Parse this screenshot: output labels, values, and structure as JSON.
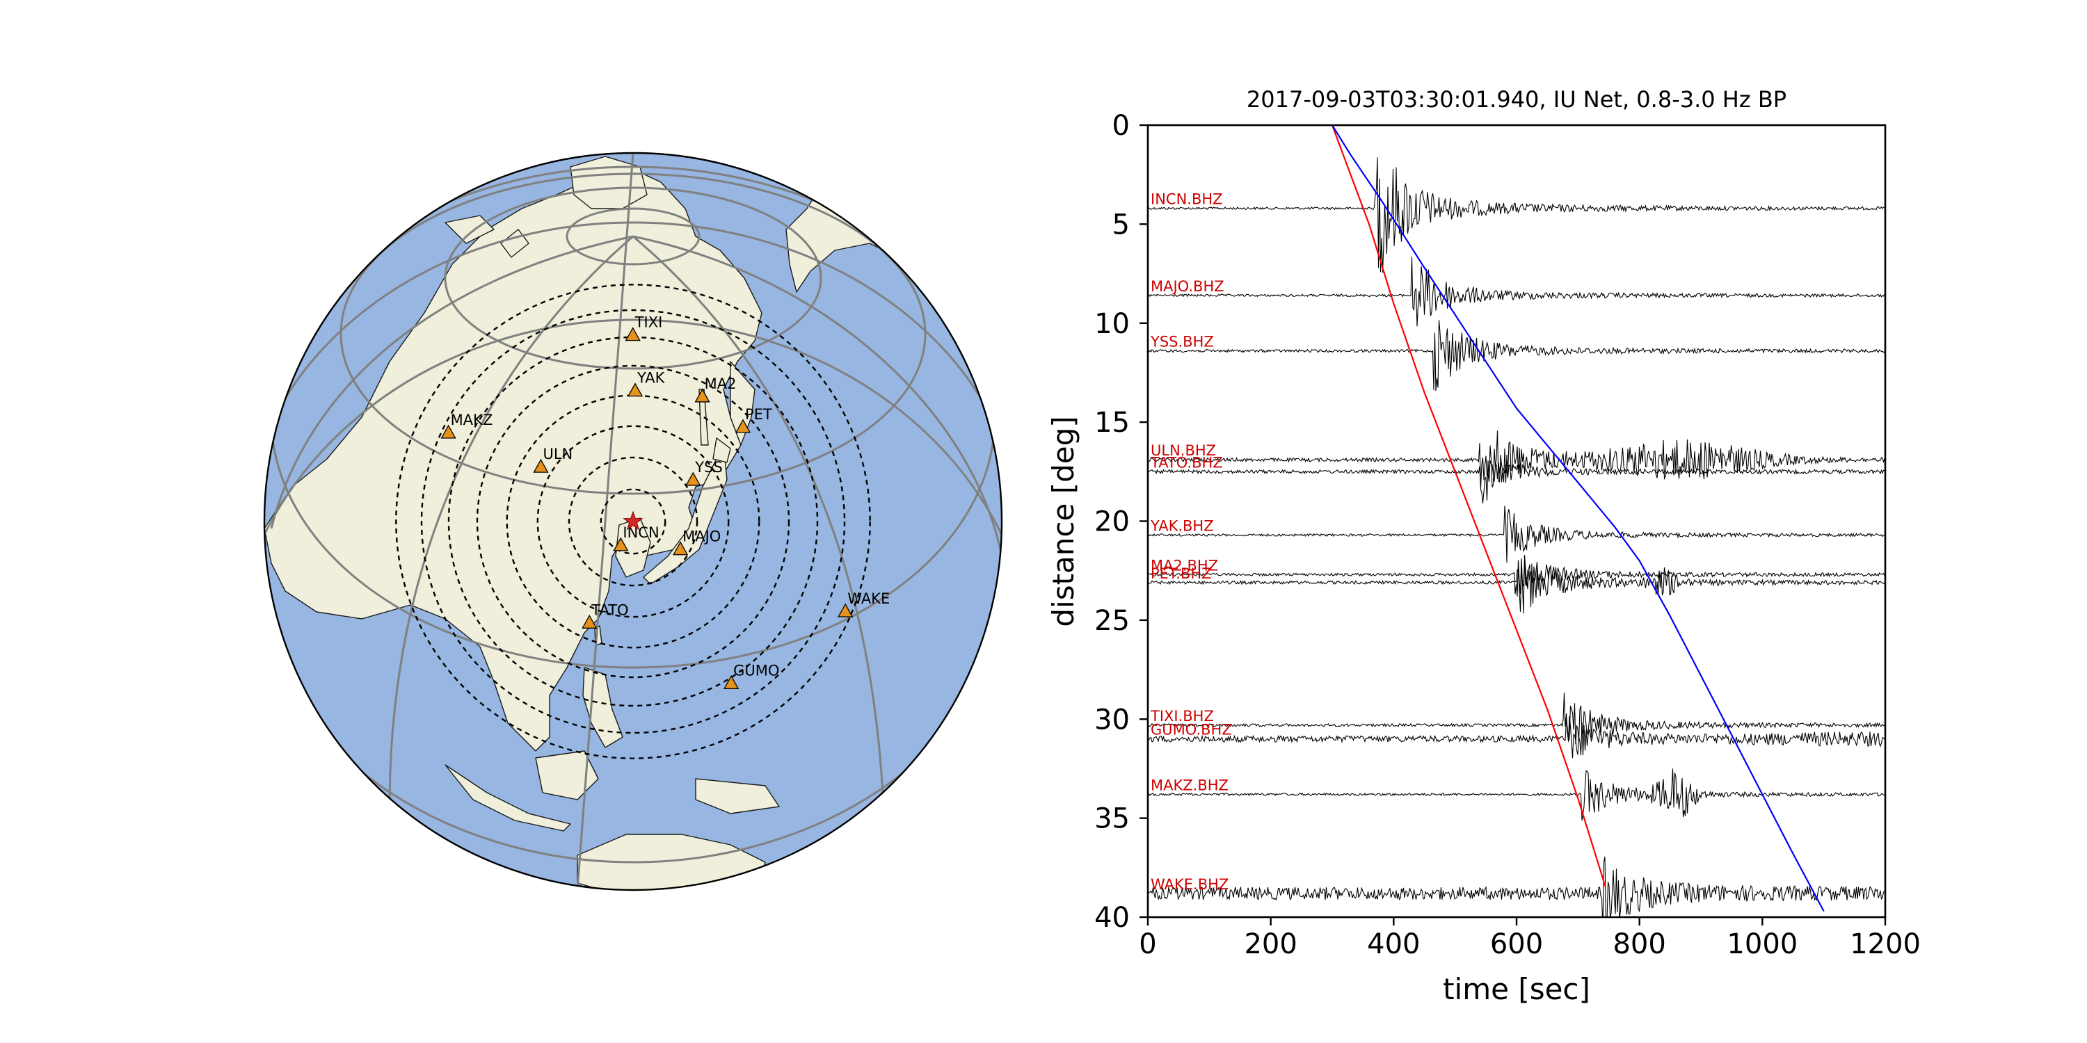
{
  "colors": {
    "ocean": "#97b6e1",
    "land": "#efefdb",
    "coast": "#1a1a1a",
    "graticule": "#808080",
    "station": "#e69119",
    "epicenter": "#d62728",
    "p_curve": "#ff0000",
    "s_curve": "#0000ff",
    "trace": "#000000",
    "trace_label": "#cc0000"
  },
  "icons": {
    "station": "triangle-icon",
    "epicenter": "star-icon"
  },
  "map": {
    "projection": "orthographic",
    "center": {
      "lat": 41.3,
      "lon": 129.0
    },
    "distance_rings_deg": [
      5,
      10,
      15,
      20,
      25,
      30,
      35,
      40
    ],
    "stations": [
      {
        "code": "TIXI",
        "lat": 71.6,
        "lon": 128.9
      },
      {
        "code": "YAK",
        "lat": 62.0,
        "lon": 129.7
      },
      {
        "code": "MA2",
        "lat": 59.6,
        "lon": 150.8
      },
      {
        "code": "PET",
        "lat": 53.0,
        "lon": 158.7
      },
      {
        "code": "MAKZ",
        "lat": 46.8,
        "lon": 81.98
      },
      {
        "code": "ULN",
        "lat": 47.9,
        "lon": 107.1
      },
      {
        "code": "YSS",
        "lat": 46.95,
        "lon": 142.8
      },
      {
        "code": "INCN",
        "lat": 37.5,
        "lon": 126.6
      },
      {
        "code": "MAJO",
        "lat": 36.5,
        "lon": 138.2
      },
      {
        "code": "TATO",
        "lat": 24.97,
        "lon": 121.5
      },
      {
        "code": "WAKE",
        "lat": 19.3,
        "lon": 166.6
      },
      {
        "code": "GUMO",
        "lat": 13.6,
        "lon": 144.9
      }
    ]
  },
  "chart_data": {
    "type": "line",
    "title": "2017-09-03T03:30:01.940, IU Net, 0.8-3.0 Hz BP",
    "xlabel": "time [sec]",
    "ylabel": "distance [deg]",
    "xlim": [
      0,
      1200
    ],
    "ylim": [
      40,
      0
    ],
    "xticks": [
      0,
      200,
      400,
      600,
      800,
      1000,
      1200
    ],
    "yticks": [
      0,
      5,
      10,
      15,
      20,
      25,
      30,
      35,
      40
    ],
    "traces": [
      {
        "name": "INCN.BHZ",
        "distance": 4.2,
        "p_arrival": 370,
        "amplitude": 3.7,
        "noise": 0.06,
        "secondary": []
      },
      {
        "name": "MAJO.BHZ",
        "distance": 8.6,
        "p_arrival": 428,
        "amplitude": 2.0,
        "noise": 0.06,
        "secondary": []
      },
      {
        "name": "YSS.BHZ",
        "distance": 11.4,
        "p_arrival": 465,
        "amplitude": 2.0,
        "noise": 0.07,
        "secondary": []
      },
      {
        "name": "ULN.BHZ",
        "distance": 16.9,
        "p_arrival": 540,
        "amplitude": 2.3,
        "noise": 0.09,
        "secondary": [
          [
            870,
            0.9,
            130
          ]
        ]
      },
      {
        "name": "TATO.BHZ",
        "distance": 17.5,
        "p_arrival": 540,
        "amplitude": 0.9,
        "noise": 0.09,
        "secondary": []
      },
      {
        "name": "YAK.BHZ",
        "distance": 20.7,
        "p_arrival": 580,
        "amplitude": 1.3,
        "noise": 0.06,
        "secondary": []
      },
      {
        "name": "MA2.BHZ",
        "distance": 22.7,
        "p_arrival": 595,
        "amplitude": 1.2,
        "noise": 0.07,
        "secondary": []
      },
      {
        "name": "PET.BHZ",
        "distance": 23.1,
        "p_arrival": 600,
        "amplitude": 1.7,
        "noise": 0.08,
        "secondary": [
          [
            840,
            0.6,
            25
          ]
        ]
      },
      {
        "name": "TIXI.BHZ",
        "distance": 30.3,
        "p_arrival": 675,
        "amplitude": 1.5,
        "noise": 0.07,
        "secondary": []
      },
      {
        "name": "GUMO.BHZ",
        "distance": 31.0,
        "p_arrival": 680,
        "amplitude": 1.1,
        "noise": 0.16,
        "secondary": [
          [
            1160,
            0.2,
            200
          ]
        ]
      },
      {
        "name": "MAKZ.BHZ",
        "distance": 33.8,
        "p_arrival": 705,
        "amplitude": 1.3,
        "noise": 0.06,
        "secondary": [
          [
            860,
            1.2,
            30
          ]
        ]
      },
      {
        "name": "WAKE.BHZ",
        "distance": 38.8,
        "p_arrival": 740,
        "amplitude": 1.6,
        "noise": 0.32,
        "secondary": []
      }
    ],
    "p_curve": {
      "x": [
        300,
        330,
        360,
        400,
        450,
        500,
        550,
        600,
        650,
        700,
        745
      ],
      "y": [
        0,
        2.5,
        5,
        9,
        13.5,
        17.5,
        21.5,
        25.5,
        29.5,
        34,
        38.5
      ]
    },
    "s_curve": {
      "x": [
        300,
        330,
        380,
        450,
        530,
        600,
        680,
        760,
        800,
        850,
        900,
        950,
        1000,
        1050,
        1100
      ],
      "y": [
        0,
        1.5,
        3.8,
        7.2,
        11.0,
        14.3,
        17.3,
        20.3,
        22,
        24.8,
        27.8,
        30.8,
        33.8,
        36.8,
        39.7
      ]
    }
  }
}
